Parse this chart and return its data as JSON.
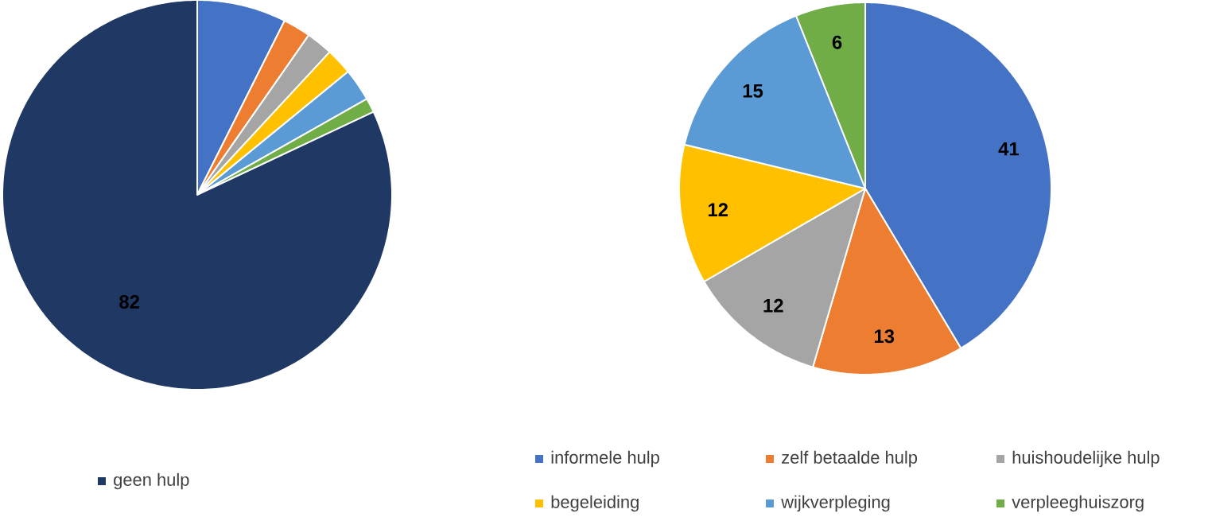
{
  "chart_data": [
    {
      "type": "pie",
      "categories": [
        null,
        null,
        null,
        null,
        null,
        null,
        "geen hulp"
      ],
      "values": [
        7.4,
        2.3,
        2.2,
        2.2,
        2.7,
        1.2,
        82
      ],
      "colors": [
        "#4472c4",
        "#ed7d31",
        "#a5a5a5",
        "#ffc000",
        "#5b9bd5",
        "#70ad47",
        "#1f3864"
      ],
      "value_labels": [
        null,
        null,
        null,
        null,
        null,
        null,
        "82"
      ],
      "legend": "bottom"
    },
    {
      "type": "pie",
      "categories": [
        "informele hulp",
        "zelf betaalde hulp",
        "huishoudelijke hulp",
        "begeleiding",
        "wijkverpleging",
        "verpleeghuiszorg"
      ],
      "values": [
        41,
        13,
        12,
        12,
        15,
        6
      ],
      "colors": [
        "#4472c4",
        "#ed7d31",
        "#a5a5a5",
        "#ffc000",
        "#5b9bd5",
        "#70ad47"
      ],
      "data_labels": true,
      "legend": "bottom"
    }
  ]
}
